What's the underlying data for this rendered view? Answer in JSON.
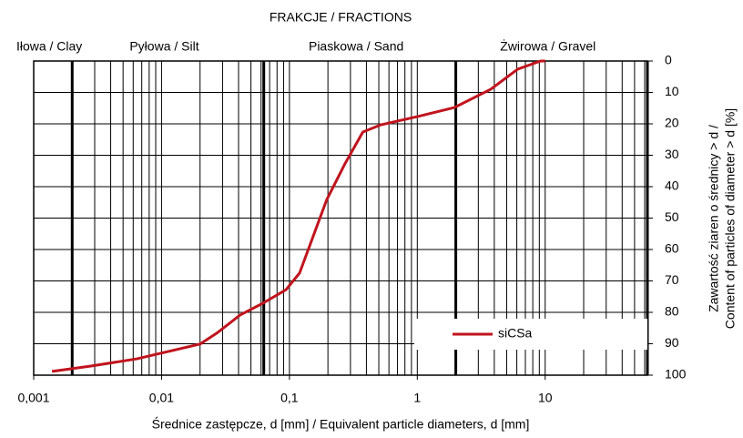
{
  "chart_data": {
    "type": "line",
    "title": "FRAKCJE / FRACTIONS",
    "xlabel": "Średnice zastępcze, d [mm] / Equivalent particle diameters, d [mm]",
    "ylabel": [
      "Zawartość ziaren o średnicy > d /",
      "Content of particles of diameter > d [%]"
    ],
    "xscale": "log",
    "xlim": [
      0.001,
      63
    ],
    "xticks": [
      {
        "value": 0.001,
        "label": "0,001"
      },
      {
        "value": 0.01,
        "label": "0,01"
      },
      {
        "value": 0.1,
        "label": "0,1"
      },
      1,
      10
    ],
    "ylim": [
      0,
      100
    ],
    "y_reversed": true,
    "y_side": "right",
    "yticks": [
      0,
      10,
      20,
      30,
      40,
      50,
      60,
      70,
      80,
      90,
      100
    ],
    "grid": true,
    "legend": "lower right",
    "fractions": [
      {
        "label": "Iłowa / Clay",
        "from": 0.001,
        "to": 0.002
      },
      {
        "label": "Pyłowa / Silt",
        "from": 0.002,
        "to": 0.063
      },
      {
        "label": "Piaskowa / Sand",
        "from": 0.063,
        "to": 2
      },
      {
        "label": "Żwirowa / Gravel",
        "from": 2,
        "to": 63
      }
    ],
    "series": [
      {
        "name": "siCSa",
        "color": "#c0141e",
        "x": [
          0.00139,
          0.0028,
          0.0064,
          0.02,
          0.0275,
          0.041,
          0.062,
          0.094,
          0.12,
          0.153,
          0.195,
          0.271,
          0.375,
          0.52,
          1.0,
          1.95,
          3.75,
          6.1,
          9.2,
          10
        ],
        "values": [
          98.8,
          97.1,
          94.8,
          90.1,
          86.4,
          80.9,
          77.1,
          72.8,
          67.5,
          55.9,
          44.3,
          32.8,
          22.6,
          20.3,
          17.7,
          14.8,
          9,
          2.6,
          0,
          0
        ]
      }
    ]
  }
}
